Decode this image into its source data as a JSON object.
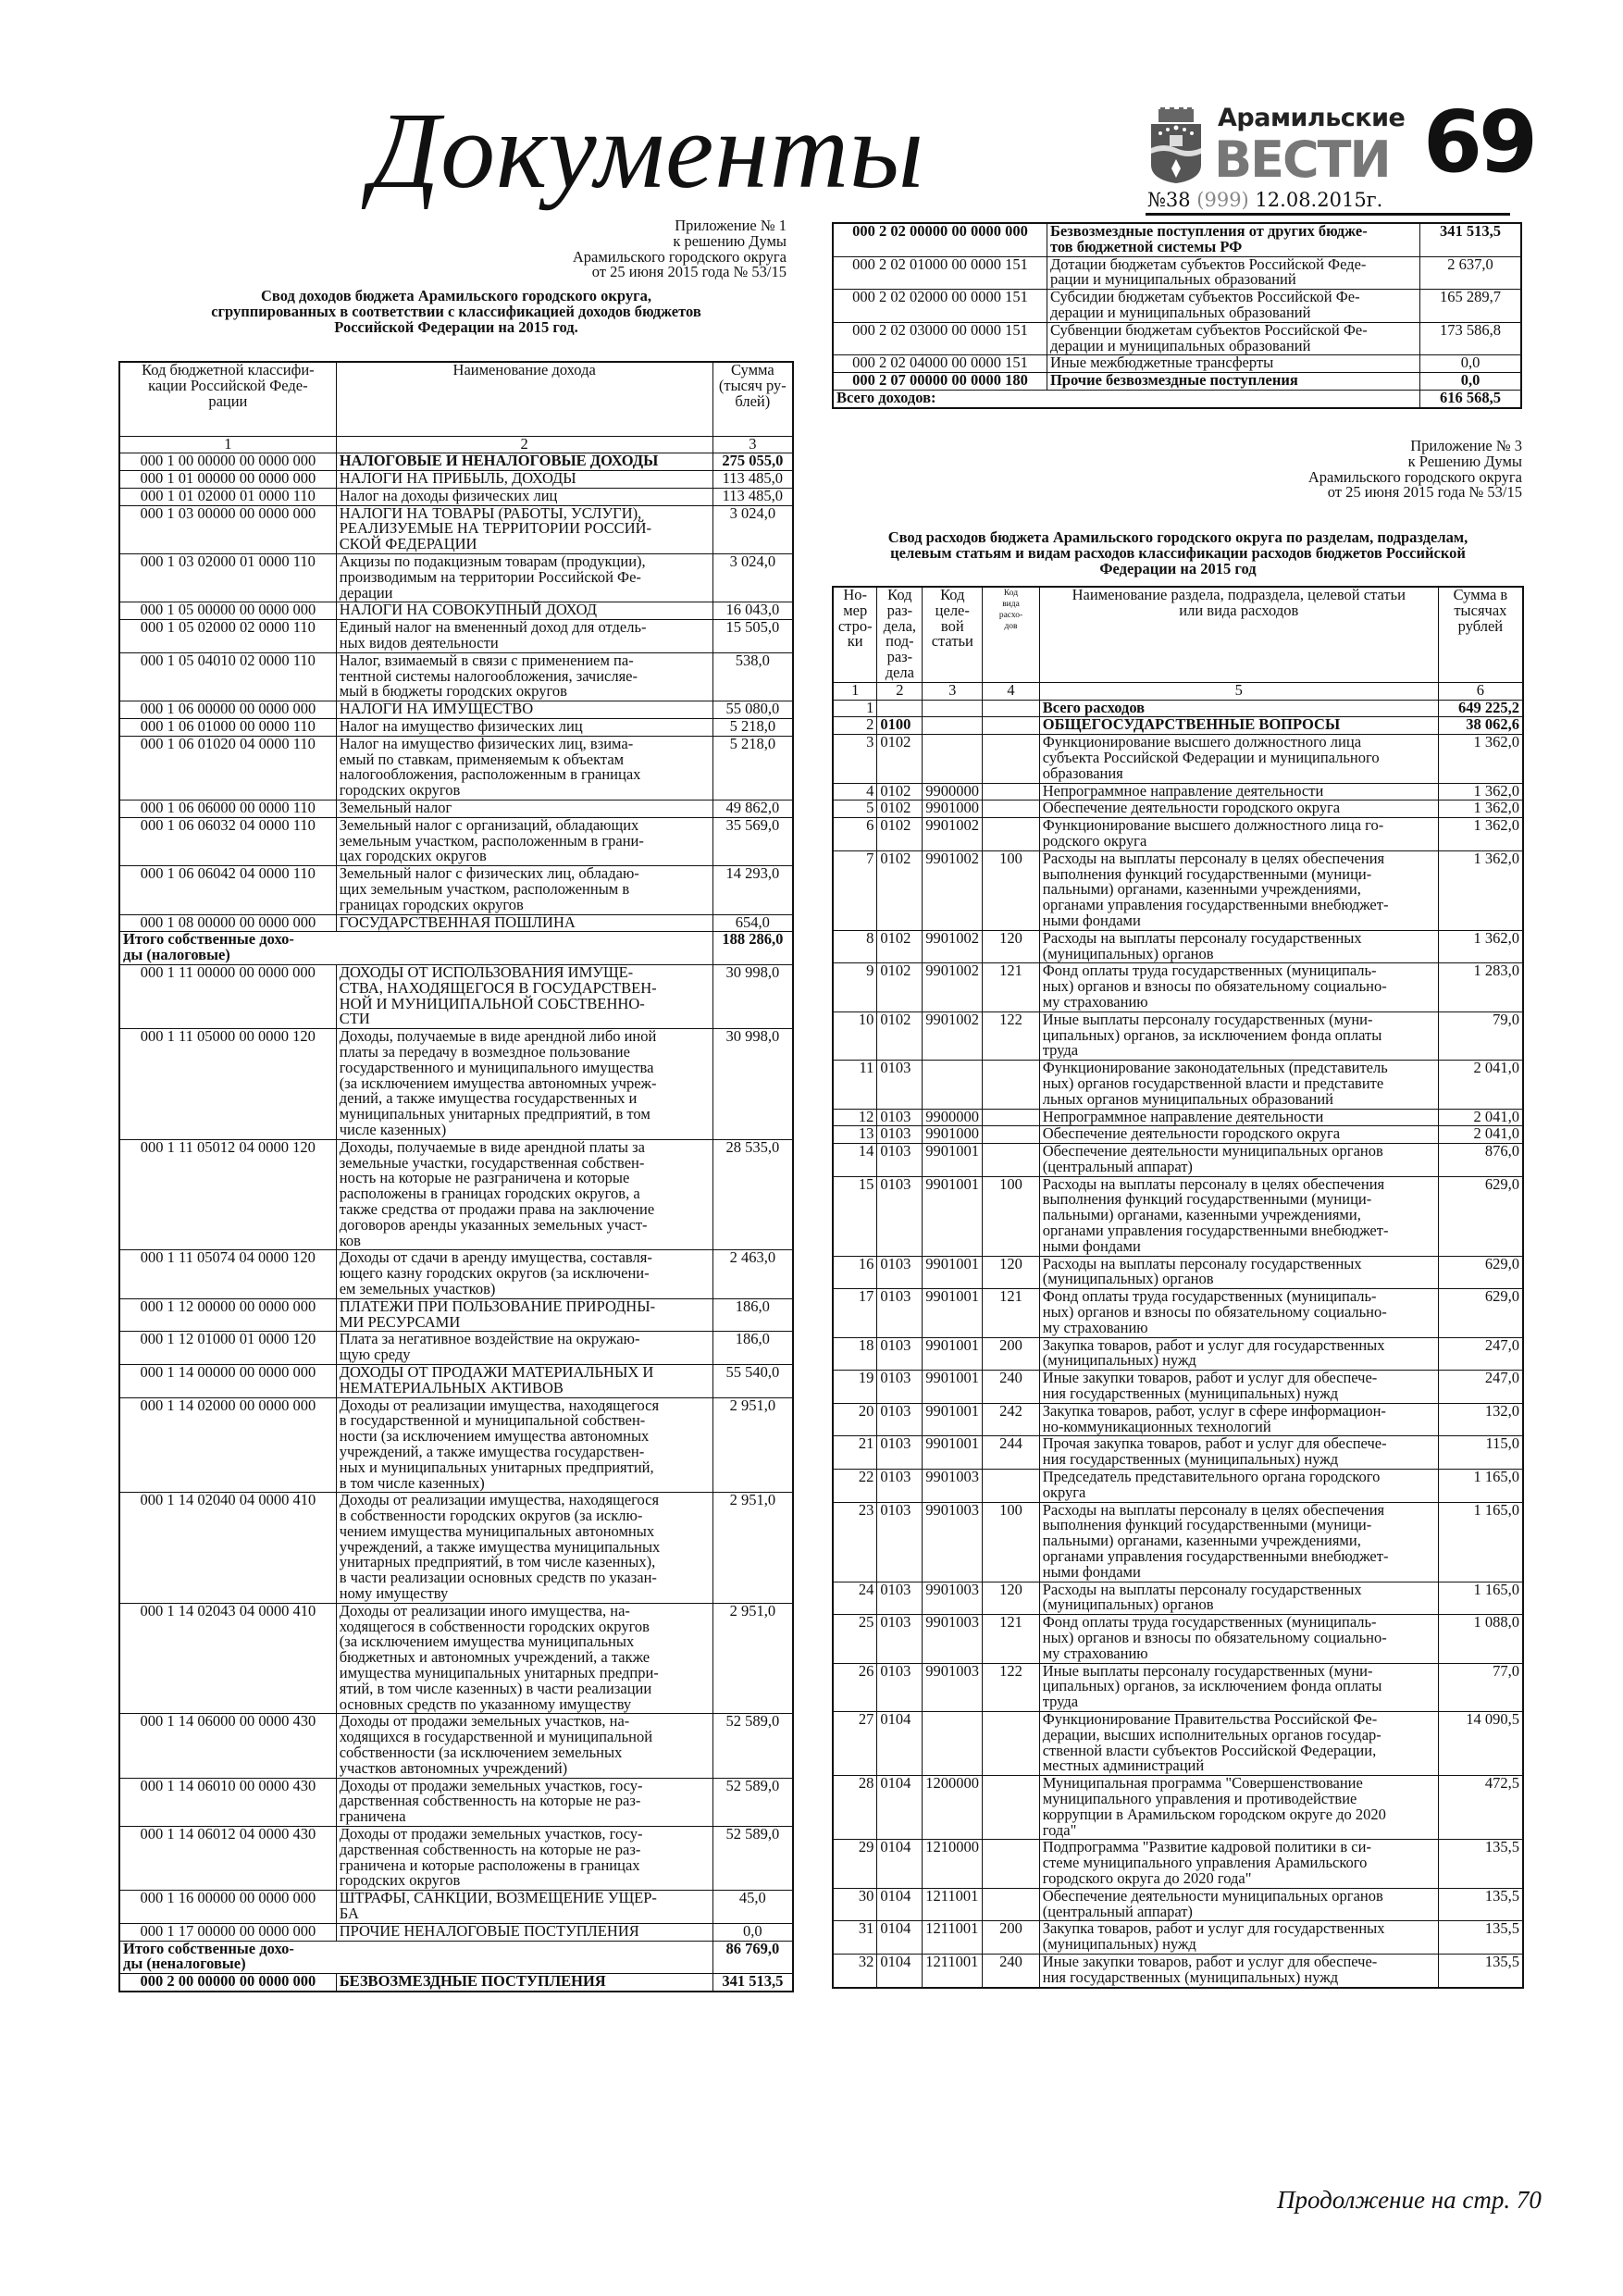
{
  "header": {
    "section_title": "Документы",
    "logo": {
      "line1": "Арамильские",
      "line2": "ВЕСТИ"
    },
    "page_number": "69",
    "issue": {
      "number": "№38",
      "total": "(999)",
      "date": "12.08.2015г."
    }
  },
  "appendix1": {
    "note": "Приложение № 1\nк решению Думы\nАрамильского городского округа\nот 25 июня 2015 года № 53/15",
    "title": "Свод доходов бюджета Арамильского городского округа,\nсгруппированных в соответствии с классификацией доходов бюджетов\nРоссийской Федерации на 2015 год.",
    "headers": [
      "Код бюджетной классифи-\nкации Российской Феде-\nрации",
      "Наименование дохода",
      "Сумма\n(тысяч ру-\nблей)"
    ],
    "col_numbers": [
      "1",
      "2",
      "3"
    ],
    "rows": [
      {
        "code": "000 1 00 00000 00 0000 000",
        "name": "НАЛОГОВЫЕ И НЕНАЛОГОВЫЕ ДОХОДЫ",
        "sum": "275 055,0",
        "bold": true
      },
      {
        "code": "000 1 01 00000 00 0000 000",
        "name": "НАЛОГИ НА ПРИБЫЛЬ, ДОХОДЫ",
        "sum": "113 485,0"
      },
      {
        "code": "000 1 01 02000 01 0000 110",
        "name": "Налог на доходы физических лиц",
        "sum": "113 485,0"
      },
      {
        "code": "000 1 03 00000 00 0000 000",
        "name": "НАЛОГИ НА ТОВАРЫ (РАБОТЫ, УСЛУГИ),\nРЕАЛИЗУЕМЫЕ НА ТЕРРИТОРИИ РОССИЙ-\nСКОЙ ФЕДЕРАЦИИ",
        "sum": "3 024,0"
      },
      {
        "code": "000 1 03 02000 01 0000 110",
        "name": "Акцизы по подакцизным товарам (продукции),\nпроизводимым на территории Российской Фе-\nдерации",
        "sum": "3 024,0"
      },
      {
        "code": "000 1 05 00000 00 0000 000",
        "name": "НАЛОГИ НА СОВОКУПНЫЙ ДОХОД",
        "sum": "16 043,0"
      },
      {
        "code": "000 1 05 02000 02 0000 110",
        "name": "Единый налог на вмененный доход для отдель-\nных видов деятельности",
        "sum": "15 505,0"
      },
      {
        "code": "000 1 05 04010 02 0000 110",
        "name": "Налог, взимаемый в связи с применением па-\nтентной системы налогообложения, зачисляе-\nмый в бюджеты городских округов",
        "sum": "538,0"
      },
      {
        "code": "000 1 06 00000 00 0000 000",
        "name": "НАЛОГИ НА ИМУЩЕСТВО",
        "sum": "55 080,0"
      },
      {
        "code": "000 1 06 01000 00 0000 110",
        "name": "Налог на имущество физических лиц",
        "sum": "5 218,0"
      },
      {
        "code": "000 1 06 01020 04 0000 110",
        "name": "Налог на имущество физических лиц, взима-\nемый по ставкам, применяемым к объектам\nналогообложения, расположенным в границах\nгородских округов",
        "sum": "5 218,0"
      },
      {
        "code": "000 1 06 06000 00 0000 110",
        "name": "Земельный налог",
        "sum": "49 862,0"
      },
      {
        "code": "000 1 06 06032 04 0000 110",
        "name": "Земельный налог с организаций, обладающих\nземельным участком, расположенным в грани-\nцах городских округов",
        "sum": "35 569,0"
      },
      {
        "code": "000 1 06 06042 04 0000 110",
        "name": "Земельный налог с физических лиц, обладаю-\nщих земельным участком, расположенным в\nграницах городских округов",
        "sum": "14 293,0"
      },
      {
        "code": "000 1 08 00000 00 0000 000",
        "name": "ГОСУДАРСТВЕННАЯ ПОШЛИНА",
        "sum": "654,0"
      },
      {
        "label": "Итого собственные дохо-\nды (налоговые)",
        "sum": "188 286,0",
        "bold": true
      },
      {
        "code": "000 1 11 00000 00 0000 000",
        "name": "ДОХОДЫ ОТ ИСПОЛЬЗОВАНИЯ ИМУЩЕ-\nСТВА, НАХОДЯЩЕГОСЯ В ГОСУДАРСТВЕН-\nНОЙ И МУНИЦИПАЛЬНОЙ СОБСТВЕННО-\nСТИ",
        "sum": "30 998,0"
      },
      {
        "code": "000 1 11 05000 00 0000 120",
        "name": "Доходы, получаемые в виде арендной либо иной\nплаты за передачу в возмездное пользование\nгосударственного и муниципального имущества\n(за исключением имущества автономных учреж-\nдений, а также имущества государственных и\nмуниципальных унитарных предприятий, в том\nчисле казенных)",
        "sum": "30 998,0"
      },
      {
        "code": "000 1 11 05012 04 0000 120",
        "name": "Доходы, получаемые в виде арендной платы за\nземельные участки, государственная собствен-\nность на которые не разграничена и которые\nрасположены в границах городских округов, а\nтакже средства от продажи права на заключение\nдоговоров аренды указанных земельных участ-\nков",
        "sum": "28 535,0"
      },
      {
        "code": "000 1 11 05074 04 0000 120",
        "name": "Доходы от сдачи в аренду имущества, составля-\nющего казну городских округов (за исключени-\nем земельных участков)",
        "sum": "2 463,0"
      },
      {
        "code": "000 1 12 00000 00 0000 000",
        "name": "ПЛАТЕЖИ ПРИ ПОЛЬЗОВАНИЕ ПРИРОДНЫ-\nМИ РЕСУРСАМИ",
        "sum": "186,0"
      },
      {
        "code": "000 1 12 01000 01 0000 120",
        "name": "Плата за негативное воздействие на окружаю-\nщую среду",
        "sum": "186,0"
      },
      {
        "code": "000 1 14 00000 00 0000 000",
        "name": "ДОХОДЫ ОТ ПРОДАЖИ МАТЕРИАЛЬНЫХ И\nНЕМАТЕРИАЛЬНЫХ АКТИВОВ",
        "sum": "55 540,0"
      },
      {
        "code": "000 1 14 02000 00 0000 000",
        "name": "Доходы от реализации имущества, находящегося\nв государственной и муниципальной собствен-\nности (за исключением имущества автономных\nучреждений, а также имущества государствен-\nных и муниципальных унитарных предприятий,\nв том числе казенных)",
        "sum": "2 951,0"
      },
      {
        "code": "000 1 14 02040 04 0000 410",
        "name": "Доходы от реализации имущества, находящегося\nв собственности городских округов (за исклю-\nчением имущества муниципальных автономных\nучреждений, а также имущества муниципальных\nунитарных предприятий, в том числе казенных),\nв части реализации основных средств по указан-\nному имуществу",
        "sum": "2 951,0"
      },
      {
        "code": "000 1 14 02043 04 0000 410",
        "name": "Доходы от реализации иного имущества, на-\nходящегося в собственности городских округов\n(за исключением имущества муниципальных\nбюджетных и автономных учреждений, а также\nимущества муниципальных унитарных предпри-\nятий, в том числе казенных) в части реализации\nосновных средств по указанному имуществу",
        "sum": "2 951,0"
      },
      {
        "code": "000 1 14 06000 00 0000 430",
        "name": "Доходы от продажи земельных участков, на-\nходящихся в государственной и муниципальной\nсобственности (за исключением земельных\nучастков автономных учреждений)",
        "sum": "52 589,0"
      },
      {
        "code": "000 1 14 06010 00 0000 430",
        "name": "Доходы от продажи земельных участков, госу-\nдарственная собственность на которые не раз-\nграничена",
        "sum": "52 589,0"
      },
      {
        "code": "000 1 14 06012 04 0000 430",
        "name": "Доходы от продажи земельных участков, госу-\nдарственная собственность на которые не раз-\nграничена и которые расположены в границах\nгородских округов",
        "sum": "52 589,0"
      },
      {
        "code": "000 1 16 00000 00 0000 000",
        "name": "ШТРАФЫ, САНКЦИИ, ВОЗМЕЩЕНИЕ УЩЕР-\nБА",
        "sum": "45,0"
      },
      {
        "code": "000 1 17 00000 00 0000 000",
        "name": "ПРОЧИЕ НЕНАЛОГОВЫЕ ПОСТУПЛЕНИЯ",
        "sum": "0,0"
      },
      {
        "label": "Итого собственные дохо-\nды (неналоговые)",
        "sum": "86 769,0",
        "bold": true
      },
      {
        "code": "000 2 00 00000 00 0000 000",
        "name": "БЕЗВОЗМЕЗДНЫЕ ПОСТУПЛЕНИЯ",
        "sum": "341 513,5",
        "bold": true,
        "bold_code": true
      }
    ],
    "continuation_rows": [
      {
        "code": "000 2 02 00000 00 0000 000",
        "name": "Безвозмездные поступления от других бюдже-\nтов бюджетной системы РФ",
        "sum": "341 513,5",
        "bold": true,
        "bold_code": true
      },
      {
        "code": "000 2 02 01000 00 0000 151",
        "name": "Дотации бюджетам субъектов Российской Феде-\nрации и муниципальных образований",
        "sum": "2 637,0"
      },
      {
        "code": "000 2 02 02000 00 0000 151",
        "name": "Субсидии бюджетам субъектов Российской Фе-\nдерации и муниципальных образований",
        "sum": "165 289,7"
      },
      {
        "code": "000 2 02 03000 00 0000 151",
        "name": "Субвенции бюджетам субъектов Российской Фе-\nдерации и муниципальных образований",
        "sum": "173 586,8"
      },
      {
        "code": "000 2 02 04000 00 0000 151",
        "name": "Иные межбюджетные трансферты",
        "sum": "0,0"
      },
      {
        "code": "000 2 07 00000 00 0000 180",
        "name": "Прочие безвозмездные поступления",
        "sum": "0,0",
        "bold": true,
        "bold_code": true
      },
      {
        "label": "Всего доходов:",
        "sum": "616 568,5",
        "bold": true
      }
    ]
  },
  "appendix3": {
    "note": "Приложение № 3\nк Решению Думы\nАрамильского городского округа\nот 25 июня 2015 года № 53/15",
    "title": "Свод расходов бюджета Арамильского городского округа по разделам, подразделам,\nцелевым статьям и видам расходов классификации расходов бюджетов Российской\nФедерации на 2015 год",
    "headers": [
      "Но-\nмер\nстро-\nки",
      "Код\nраз-\nдела,\nпод-\nраз-\nдела",
      "Код\nцеле-\nвой\nстатьи",
      "Код\nвида\nрасхо-\nдов",
      "Наименование раздела, подраздела, целевой статьи\nили вида расходов",
      "Сумма в\nтысячах\nрублей"
    ],
    "col_numbers": [
      "1",
      "2",
      "3",
      "4",
      "5",
      "6"
    ],
    "rows": [
      {
        "n": "1",
        "sec": "",
        "cs": "",
        "vr": "",
        "name": "Всего расходов",
        "sum": "649 225,2",
        "bold": true
      },
      {
        "n": "2",
        "sec": "0100",
        "cs": "",
        "vr": "",
        "name": "ОБЩЕГОСУДАРСТВЕННЫЕ ВОПРОСЫ",
        "sum": "38 062,6",
        "bold": true
      },
      {
        "n": "3",
        "sec": "0102",
        "cs": "",
        "vr": "",
        "name": "Функционирование высшего должностного лица\nсубъекта Российской Федерации и муниципального\nобразования",
        "sum": "1 362,0"
      },
      {
        "n": "4",
        "sec": "0102",
        "cs": "9900000",
        "vr": "",
        "name": "Непрограммное направление деятельности",
        "sum": "1 362,0"
      },
      {
        "n": "5",
        "sec": "0102",
        "cs": "9901000",
        "vr": "",
        "name": "Обеспечение деятельности городского округа",
        "sum": "1 362,0"
      },
      {
        "n": "6",
        "sec": "0102",
        "cs": "9901002",
        "vr": "",
        "name": "Функционирование высшего должностного лица го-\nродского округа",
        "sum": "1 362,0"
      },
      {
        "n": "7",
        "sec": "0102",
        "cs": "9901002",
        "vr": "100",
        "name": "Расходы на выплаты персоналу в целях обеспечения\nвыполнения функций государственными (муници-\nпальными) органами, казенными учреждениями,\nорганами управления государственными внебюджет-\nными фондами",
        "sum": "1 362,0"
      },
      {
        "n": "8",
        "sec": "0102",
        "cs": "9901002",
        "vr": "120",
        "name": "Расходы на выплаты персоналу государственных\n(муниципальных) органов",
        "sum": "1 362,0"
      },
      {
        "n": "9",
        "sec": "0102",
        "cs": "9901002",
        "vr": "121",
        "name": "Фонд оплаты труда государственных (муниципаль-\nных) органов и взносы по обязательному социально-\nму страхованию",
        "sum": "1 283,0"
      },
      {
        "n": "10",
        "sec": "0102",
        "cs": "9901002",
        "vr": "122",
        "name": "Иные выплаты персоналу государственных (муни-\nципальных) органов, за исключением фонда оплаты\nтруда",
        "sum": "79,0"
      },
      {
        "n": "11",
        "sec": "0103",
        "cs": "",
        "vr": "",
        "name": "Функционирование законодательных (представитель\nных) органов государственной власти и представите\nльных органов муниципальных образований",
        "sum": "2 041,0"
      },
      {
        "n": "12",
        "sec": "0103",
        "cs": "9900000",
        "vr": "",
        "name": "Непрограммное направление деятельности",
        "sum": "2 041,0"
      },
      {
        "n": "13",
        "sec": "0103",
        "cs": "9901000",
        "vr": "",
        "name": "Обеспечение деятельности городского округа",
        "sum": "2 041,0"
      },
      {
        "n": "14",
        "sec": "0103",
        "cs": "9901001",
        "vr": "",
        "name": "Обеспечение деятельности муниципальных органов\n(центральный аппарат)",
        "sum": "876,0"
      },
      {
        "n": "15",
        "sec": "0103",
        "cs": "9901001",
        "vr": "100",
        "name": "Расходы на выплаты персоналу в целях обеспечения\nвыполнения функций государственными (муници-\nпальными) органами, казенными учреждениями,\nорганами управления государственными внебюджет-\nными фондами",
        "sum": "629,0"
      },
      {
        "n": "16",
        "sec": "0103",
        "cs": "9901001",
        "vr": "120",
        "name": "Расходы на выплаты персоналу государственных\n(муниципальных) органов",
        "sum": "629,0"
      },
      {
        "n": "17",
        "sec": "0103",
        "cs": "9901001",
        "vr": "121",
        "name": "Фонд оплаты труда государственных (муниципаль-\nных) органов и взносы по обязательному социально-\nму страхованию",
        "sum": "629,0"
      },
      {
        "n": "18",
        "sec": "0103",
        "cs": "9901001",
        "vr": "200",
        "name": "Закупка товаров, работ и услуг для государственных\n(муниципальных) нужд",
        "sum": "247,0"
      },
      {
        "n": "19",
        "sec": "0103",
        "cs": "9901001",
        "vr": "240",
        "name": "Иные закупки товаров, работ и услуг для обеспече-\nния государственных (муниципальных) нужд",
        "sum": "247,0"
      },
      {
        "n": "20",
        "sec": "0103",
        "cs": "9901001",
        "vr": "242",
        "name": "Закупка товаров, работ, услуг в сфере информацион-\nно-коммуникационных технологий",
        "sum": "132,0"
      },
      {
        "n": "21",
        "sec": "0103",
        "cs": "9901001",
        "vr": "244",
        "name": "Прочая закупка товаров, работ и услуг для обеспече-\nния государственных (муниципальных) нужд",
        "sum": "115,0"
      },
      {
        "n": "22",
        "sec": "0103",
        "cs": "9901003",
        "vr": "",
        "name": "Председатель представительного органа городского\nокруга",
        "sum": "1 165,0"
      },
      {
        "n": "23",
        "sec": "0103",
        "cs": "9901003",
        "vr": "100",
        "name": "Расходы на выплаты персоналу в целях обеспечения\nвыполнения функций государственными (муници-\nпальными) органами, казенными учреждениями,\nорганами управления государственными внебюджет-\nными фондами",
        "sum": "1 165,0"
      },
      {
        "n": "24",
        "sec": "0103",
        "cs": "9901003",
        "vr": "120",
        "name": "Расходы на выплаты персоналу государственных\n(муниципальных) органов",
        "sum": "1 165,0"
      },
      {
        "n": "25",
        "sec": "0103",
        "cs": "9901003",
        "vr": "121",
        "name": "Фонд оплаты труда государственных (муниципаль-\nных) органов и взносы по обязательному социально-\nму страхованию",
        "sum": "1 088,0"
      },
      {
        "n": "26",
        "sec": "0103",
        "cs": "9901003",
        "vr": "122",
        "name": "Иные выплаты персоналу государственных (муни-\nципальных) органов, за исключением фонда оплаты\nтруда",
        "sum": "77,0"
      },
      {
        "n": "27",
        "sec": "0104",
        "cs": "",
        "vr": "",
        "name": "Функционирование Правительства Российской Фе-\nдерации, высших исполнительных органов государ-\nственной власти субъектов Российской Федерации,\nместных администраций",
        "sum": "14 090,5"
      },
      {
        "n": "28",
        "sec": "0104",
        "cs": "1200000",
        "vr": "",
        "name": "Муниципальная программа \"Совершенствование\nмуниципального управления и противодействие\nкоррупции в Арамильском городском округе до 2020\nгода\"",
        "sum": "472,5"
      },
      {
        "n": "29",
        "sec": "0104",
        "cs": "1210000",
        "vr": "",
        "name": "Подпрограмма \"Развитие кадровой политики в си-\nстеме муниципального управления Арамильского\nгородского округа до 2020 года\"",
        "sum": "135,5"
      },
      {
        "n": "30",
        "sec": "0104",
        "cs": "1211001",
        "vr": "",
        "name": "Обеспечение деятельности муниципальных органов\n(центральный аппарат)",
        "sum": "135,5"
      },
      {
        "n": "31",
        "sec": "0104",
        "cs": "1211001",
        "vr": "200",
        "name": "Закупка товаров, работ и услуг для государственных\n(муниципальных) нужд",
        "sum": "135,5"
      },
      {
        "n": "32",
        "sec": "0104",
        "cs": "1211001",
        "vr": "240",
        "name": "Иные закупки товаров, работ и услуг для обеспече-\nния государственных (муниципальных) нужд",
        "sum": "135,5"
      }
    ]
  },
  "footer": {
    "continued": "Продолжение на стр. 70"
  }
}
